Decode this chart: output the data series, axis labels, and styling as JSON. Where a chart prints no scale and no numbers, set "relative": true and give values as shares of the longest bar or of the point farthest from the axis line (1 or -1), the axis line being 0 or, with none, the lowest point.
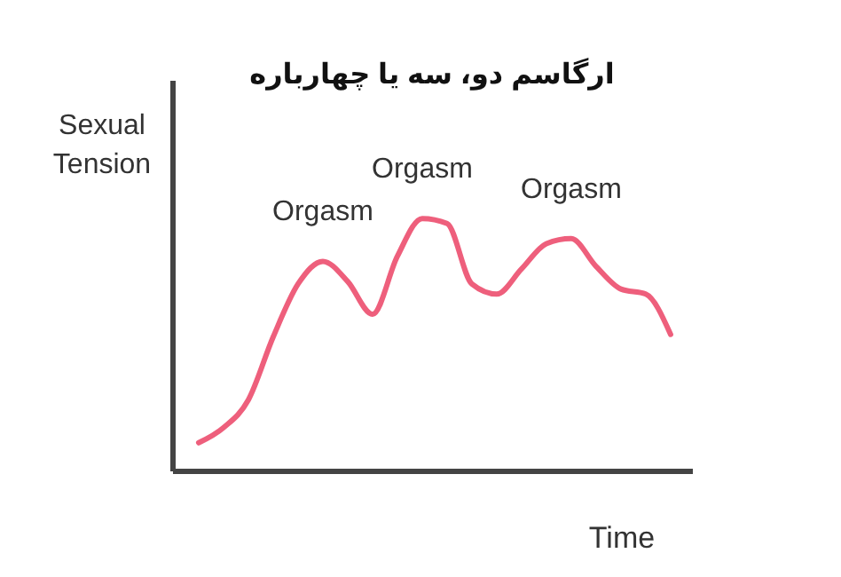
{
  "chart_data": {
    "type": "line",
    "title": "ارگاسم دو، سه یا چهارباره",
    "xlabel": "Time",
    "ylabel": "Sexual Tension",
    "relative": true,
    "color": "#ee5f7c",
    "categories": [
      null,
      null,
      null,
      null,
      null,
      null,
      null,
      null,
      null,
      null,
      null,
      null,
      null,
      null,
      null,
      null,
      null,
      null,
      null,
      null
    ],
    "values": [
      0.11,
      0.17,
      0.28,
      0.53,
      0.74,
      0.83,
      0.75,
      0.62,
      0.85,
      1,
      0.98,
      0.74,
      0.7,
      0.8,
      0.9,
      0.92,
      0.81,
      0.72,
      0.7,
      0.54
    ],
    "annotations": [
      "Orgasm",
      "Orgasm",
      "Orgasm"
    ]
  }
}
